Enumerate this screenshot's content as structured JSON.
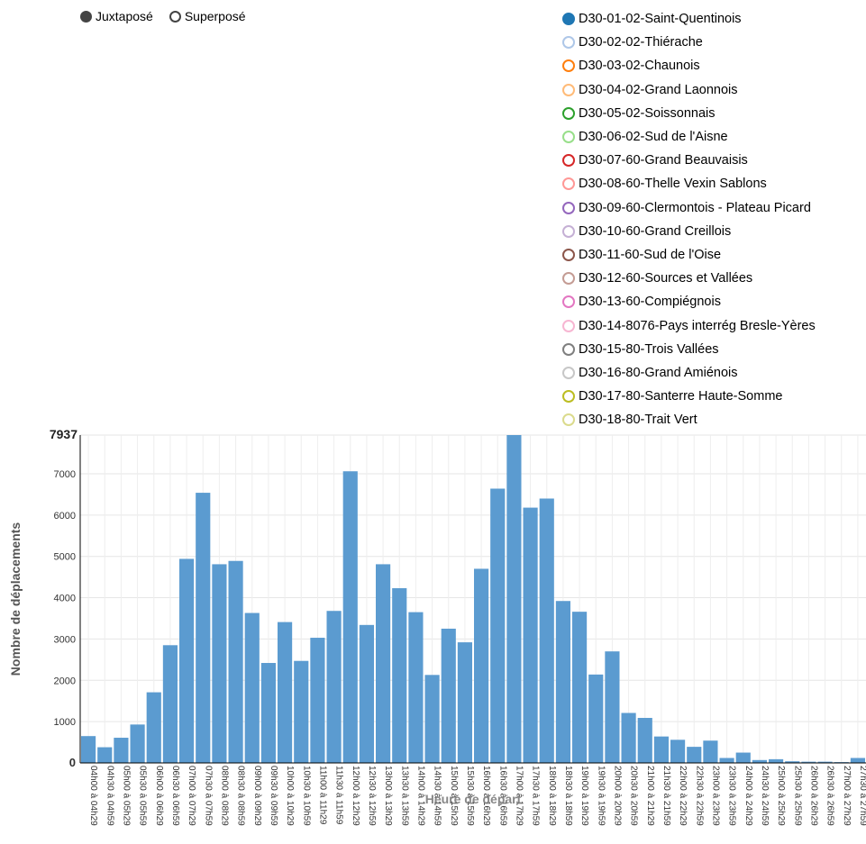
{
  "controls": [
    {
      "label": "Juxtaposé",
      "selected": true
    },
    {
      "label": "Superposé",
      "selected": false
    }
  ],
  "legend": [
    {
      "label": "D30-01-02-Saint-Quentinois",
      "color": "#1f77b4",
      "active": true
    },
    {
      "label": "D30-02-02-Thiérache",
      "color": "#aec7e8",
      "active": false
    },
    {
      "label": "D30-03-02-Chaunois",
      "color": "#ff7f0e",
      "active": false
    },
    {
      "label": "D30-04-02-Grand Laonnois",
      "color": "#ffbb78",
      "active": false
    },
    {
      "label": "D30-05-02-Soissonnais",
      "color": "#2ca02c",
      "active": false
    },
    {
      "label": "D30-06-02-Sud de l'Aisne",
      "color": "#98df8a",
      "active": false
    },
    {
      "label": "D30-07-60-Grand Beauvaisis",
      "color": "#d62728",
      "active": false
    },
    {
      "label": "D30-08-60-Thelle Vexin Sablons",
      "color": "#ff9896",
      "active": false
    },
    {
      "label": "D30-09-60-Clermontois - Plateau Picard",
      "color": "#9467bd",
      "active": false
    },
    {
      "label": "D30-10-60-Grand Creillois",
      "color": "#c5b0d5",
      "active": false
    },
    {
      "label": "D30-11-60-Sud de l'Oise",
      "color": "#8c564b",
      "active": false
    },
    {
      "label": "D30-12-60-Sources et Vallées",
      "color": "#c49c94",
      "active": false
    },
    {
      "label": "D30-13-60-Compiégnois",
      "color": "#e377c2",
      "active": false
    },
    {
      "label": "D30-14-8076-Pays interrég Bresle-Yères",
      "color": "#f7b6d2",
      "active": false
    },
    {
      "label": "D30-15-80-Trois Vallées",
      "color": "#7f7f7f",
      "active": false
    },
    {
      "label": "D30-16-80-Grand Amiénois",
      "color": "#c7c7c7",
      "active": false
    },
    {
      "label": "D30-17-80-Santerre Haute-Somme",
      "color": "#bcbd22",
      "active": false
    },
    {
      "label": "D30-18-80-Trait Vert",
      "color": "#dbdb8d",
      "active": false
    }
  ],
  "chart_data": {
    "type": "bar",
    "xlabel": "Heure de départ",
    "ylabel": "Nombre de déplacements",
    "ylim": [
      0,
      7937
    ],
    "ymax_label": "7937",
    "yticks": [
      0,
      1000,
      2000,
      3000,
      4000,
      5000,
      6000,
      7000
    ],
    "grid": true,
    "bar_color": "#5b9bd0",
    "categories": [
      "04h00 à 04h29",
      "04h30 à 04h59",
      "05h00 à 05h29",
      "05h30 à 05h59",
      "06h00 à 06h29",
      "06h30 à 06h59",
      "07h00 à 07h29",
      "07h30 à 07h59",
      "08h00 à 08h29",
      "08h30 à 08h59",
      "09h00 à 09h29",
      "09h30 à 09h59",
      "10h00 à 10h29",
      "10h30 à 10h59",
      "11h00 à 11h29",
      "11h30 à 11h59",
      "12h00 à 12h29",
      "12h30 à 12h59",
      "13h00 à 13h29",
      "13h30 à 13h59",
      "14h00 à 14h29",
      "14h30 à 14h59",
      "15h00 à 15h29",
      "15h30 à 15h59",
      "16h00 à 16h29",
      "16h30 à 16h59",
      "17h00 à 17h29",
      "17h30 à 17h59",
      "18h00 à 18h29",
      "18h30 à 18h59",
      "19h00 à 19h29",
      "19h30 à 19h59",
      "20h00 à 20h29",
      "20h30 à 20h59",
      "21h00 à 21h29",
      "21h30 à 21h59",
      "22h00 à 22h29",
      "22h30 à 22h59",
      "23h00 à 23h29",
      "23h30 à 23h59",
      "24h00 à 24h29",
      "24h30 à 24h59",
      "25h00 à 25h29",
      "25h30 à 25h59",
      "26h00 à 26h29",
      "26h30 à 26h59",
      "27h00 à 27h29",
      "27h30 à 27h59"
    ],
    "values": [
      650,
      380,
      610,
      930,
      1710,
      2850,
      4940,
      6540,
      4810,
      4890,
      3630,
      2420,
      3410,
      2470,
      3030,
      3680,
      7060,
      3340,
      4810,
      4230,
      3650,
      2130,
      3250,
      2920,
      4700,
      6640,
      7937,
      6180,
      6400,
      3920,
      3660,
      2140,
      2700,
      1210,
      1090,
      640,
      560,
      390,
      540,
      120,
      250,
      70,
      90,
      40,
      30,
      30,
      20,
      120
    ]
  }
}
